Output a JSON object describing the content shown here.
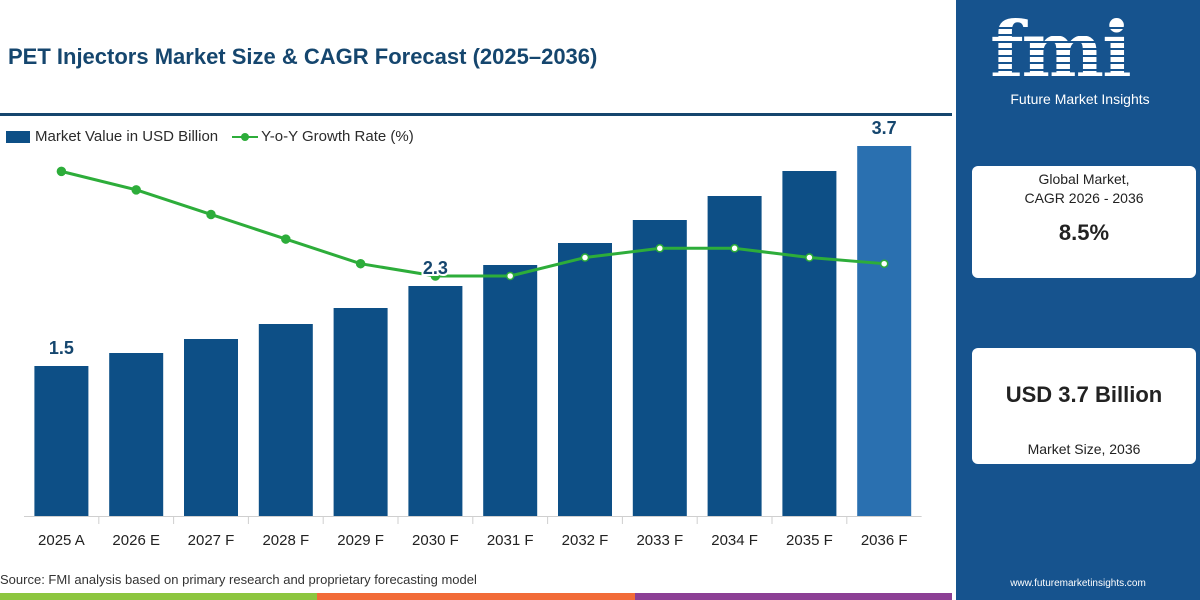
{
  "title": "PET Injectors Market Size & CAGR Forecast (2025–2036)",
  "legend": {
    "bars": "Market Value in USD Billion",
    "line": "Y-o-Y Growth Rate (%)"
  },
  "source": "Source: FMI analysis based on primary research and proprietary forecasting model",
  "brand": {
    "logo": "fmi",
    "name": "Future Market Insights",
    "website": "www.futuremarketinsights.com"
  },
  "kpi": {
    "cagr_label": "Global Market,\nCAGR 2026 - 2036",
    "cagr_value": "8.5%",
    "size_value": "USD 3.7 Billion",
    "size_label": "Market Size, 2036"
  },
  "colors": {
    "bar": "#0d4f86",
    "bar_last": "#2a70b0",
    "line": "#2dad3a",
    "title": "#15466e",
    "side_panel": "#16538e",
    "strip": [
      "#8dc63f",
      "#f26b38",
      "#8c3f95"
    ]
  },
  "chart_data": {
    "type": "bar",
    "categories": [
      "2025 A",
      "2026 E",
      "2027 F",
      "2028 F",
      "2029 F",
      "2030 F",
      "2031 F",
      "2032 F",
      "2033 F",
      "2034 F",
      "2035 F",
      "2036 F"
    ],
    "series": [
      {
        "name": "Market Value in USD Billion",
        "type": "bar",
        "values": [
          1.5,
          1.63,
          1.77,
          1.92,
          2.08,
          2.3,
          2.51,
          2.73,
          2.96,
          3.2,
          3.45,
          3.7
        ]
      },
      {
        "name": "Y-o-Y Growth Rate (%)",
        "type": "line",
        "values": [
          9.6,
          9.3,
          8.9,
          8.5,
          8.1,
          7.9,
          7.9,
          8.2,
          8.35,
          8.35,
          8.2,
          8.1
        ]
      }
    ],
    "data_labels": [
      {
        "category": "2025 A",
        "text": "1.5"
      },
      {
        "category": "2030 F",
        "text": "2.3"
      },
      {
        "category": "2036 F",
        "text": "3.7"
      }
    ],
    "ylim": [
      0,
      4.0
    ],
    "line_ylim": [
      4,
      10.5
    ],
    "grid": false,
    "legend_position": "top-left"
  }
}
